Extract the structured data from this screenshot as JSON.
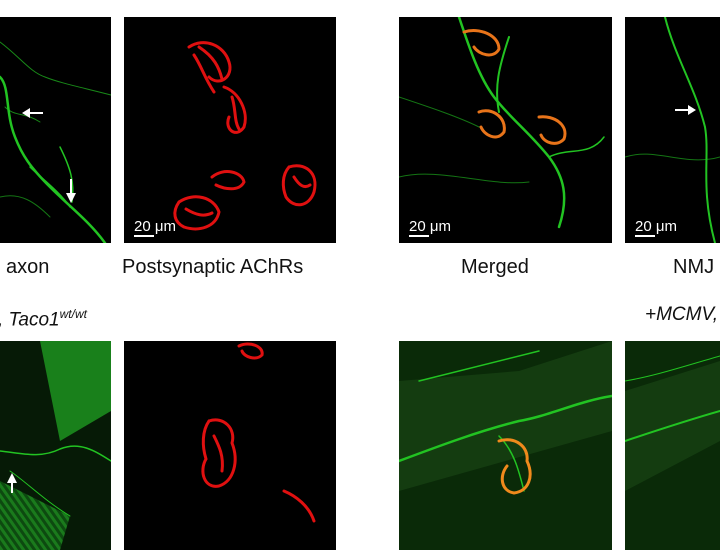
{
  "captions": {
    "axon": "axon",
    "achr": "Postsynaptic AChRs",
    "merged": "Merged",
    "nmj": "NMJ"
  },
  "scale_label": "20 μm",
  "genotypes": {
    "left_prefix": ", Taco1",
    "left_sup": "wt/wt",
    "right": "+MCMV,"
  },
  "colors": {
    "axon_stain": "#22c322",
    "achr_stain": "#e01010",
    "background": "#000000"
  }
}
